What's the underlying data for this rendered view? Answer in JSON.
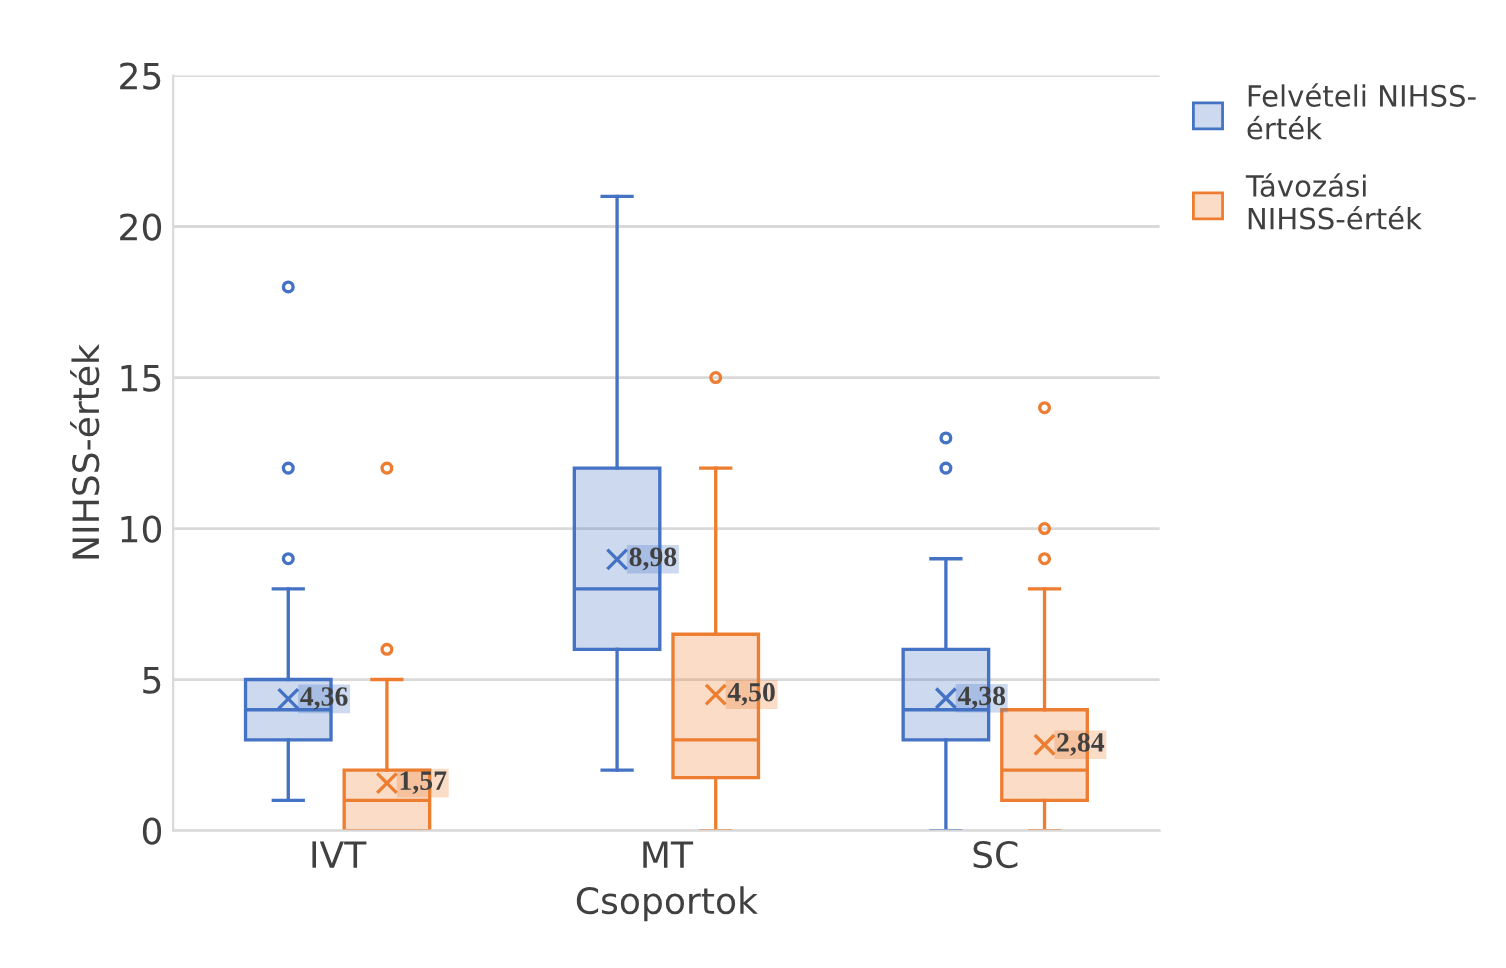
{
  "chart_data": {
    "type": "box",
    "xlabel": "Csoportok",
    "ylabel": "NIHSS-érték",
    "categories": [
      "IVT",
      "MT",
      "SC"
    ],
    "series": [
      {
        "name": "Felvételi NIHSS-érték",
        "color": "#4472c4",
        "value_labels": [
          "4,36",
          "8,98",
          "4,38"
        ],
        "boxes": [
          {
            "low": 1,
            "q1": 3,
            "median": 4,
            "q3": 5,
            "high": 8,
            "mean": 4.36,
            "outliers": [
              9,
              12,
              18
            ]
          },
          {
            "low": 2,
            "q1": 6,
            "median": 8,
            "q3": 12,
            "high": 21,
            "mean": 8.98
          },
          {
            "low": 0,
            "q1": 3,
            "median": 4,
            "q3": 6,
            "high": 9,
            "mean": 4.38,
            "outliers": [
              12,
              13
            ]
          }
        ]
      },
      {
        "name": "Távozási NIHSS-érték",
        "color": "#ed7d31",
        "value_labels": [
          "1,57",
          "4,50",
          "2,84"
        ],
        "boxes": [
          {
            "low": 0,
            "q1": 0,
            "median": 1,
            "q3": 2,
            "high": 5,
            "mean": 1.57,
            "outliers": [
              6,
              12
            ]
          },
          {
            "low": 0,
            "q1": 1.75,
            "median": 3,
            "q3": 6.5,
            "high": 12,
            "mean": 4.5,
            "outliers": [
              15
            ]
          },
          {
            "low": 0,
            "q1": 1,
            "median": 2,
            "q3": 4,
            "high": 8,
            "mean": 2.84,
            "outliers": [
              9,
              10,
              14
            ]
          }
        ]
      }
    ],
    "ylim": [
      0,
      25
    ],
    "yticks": [
      0,
      5,
      10,
      15,
      20,
      25
    ],
    "grid": "y",
    "legend": "top right",
    "marker": "circle"
  }
}
